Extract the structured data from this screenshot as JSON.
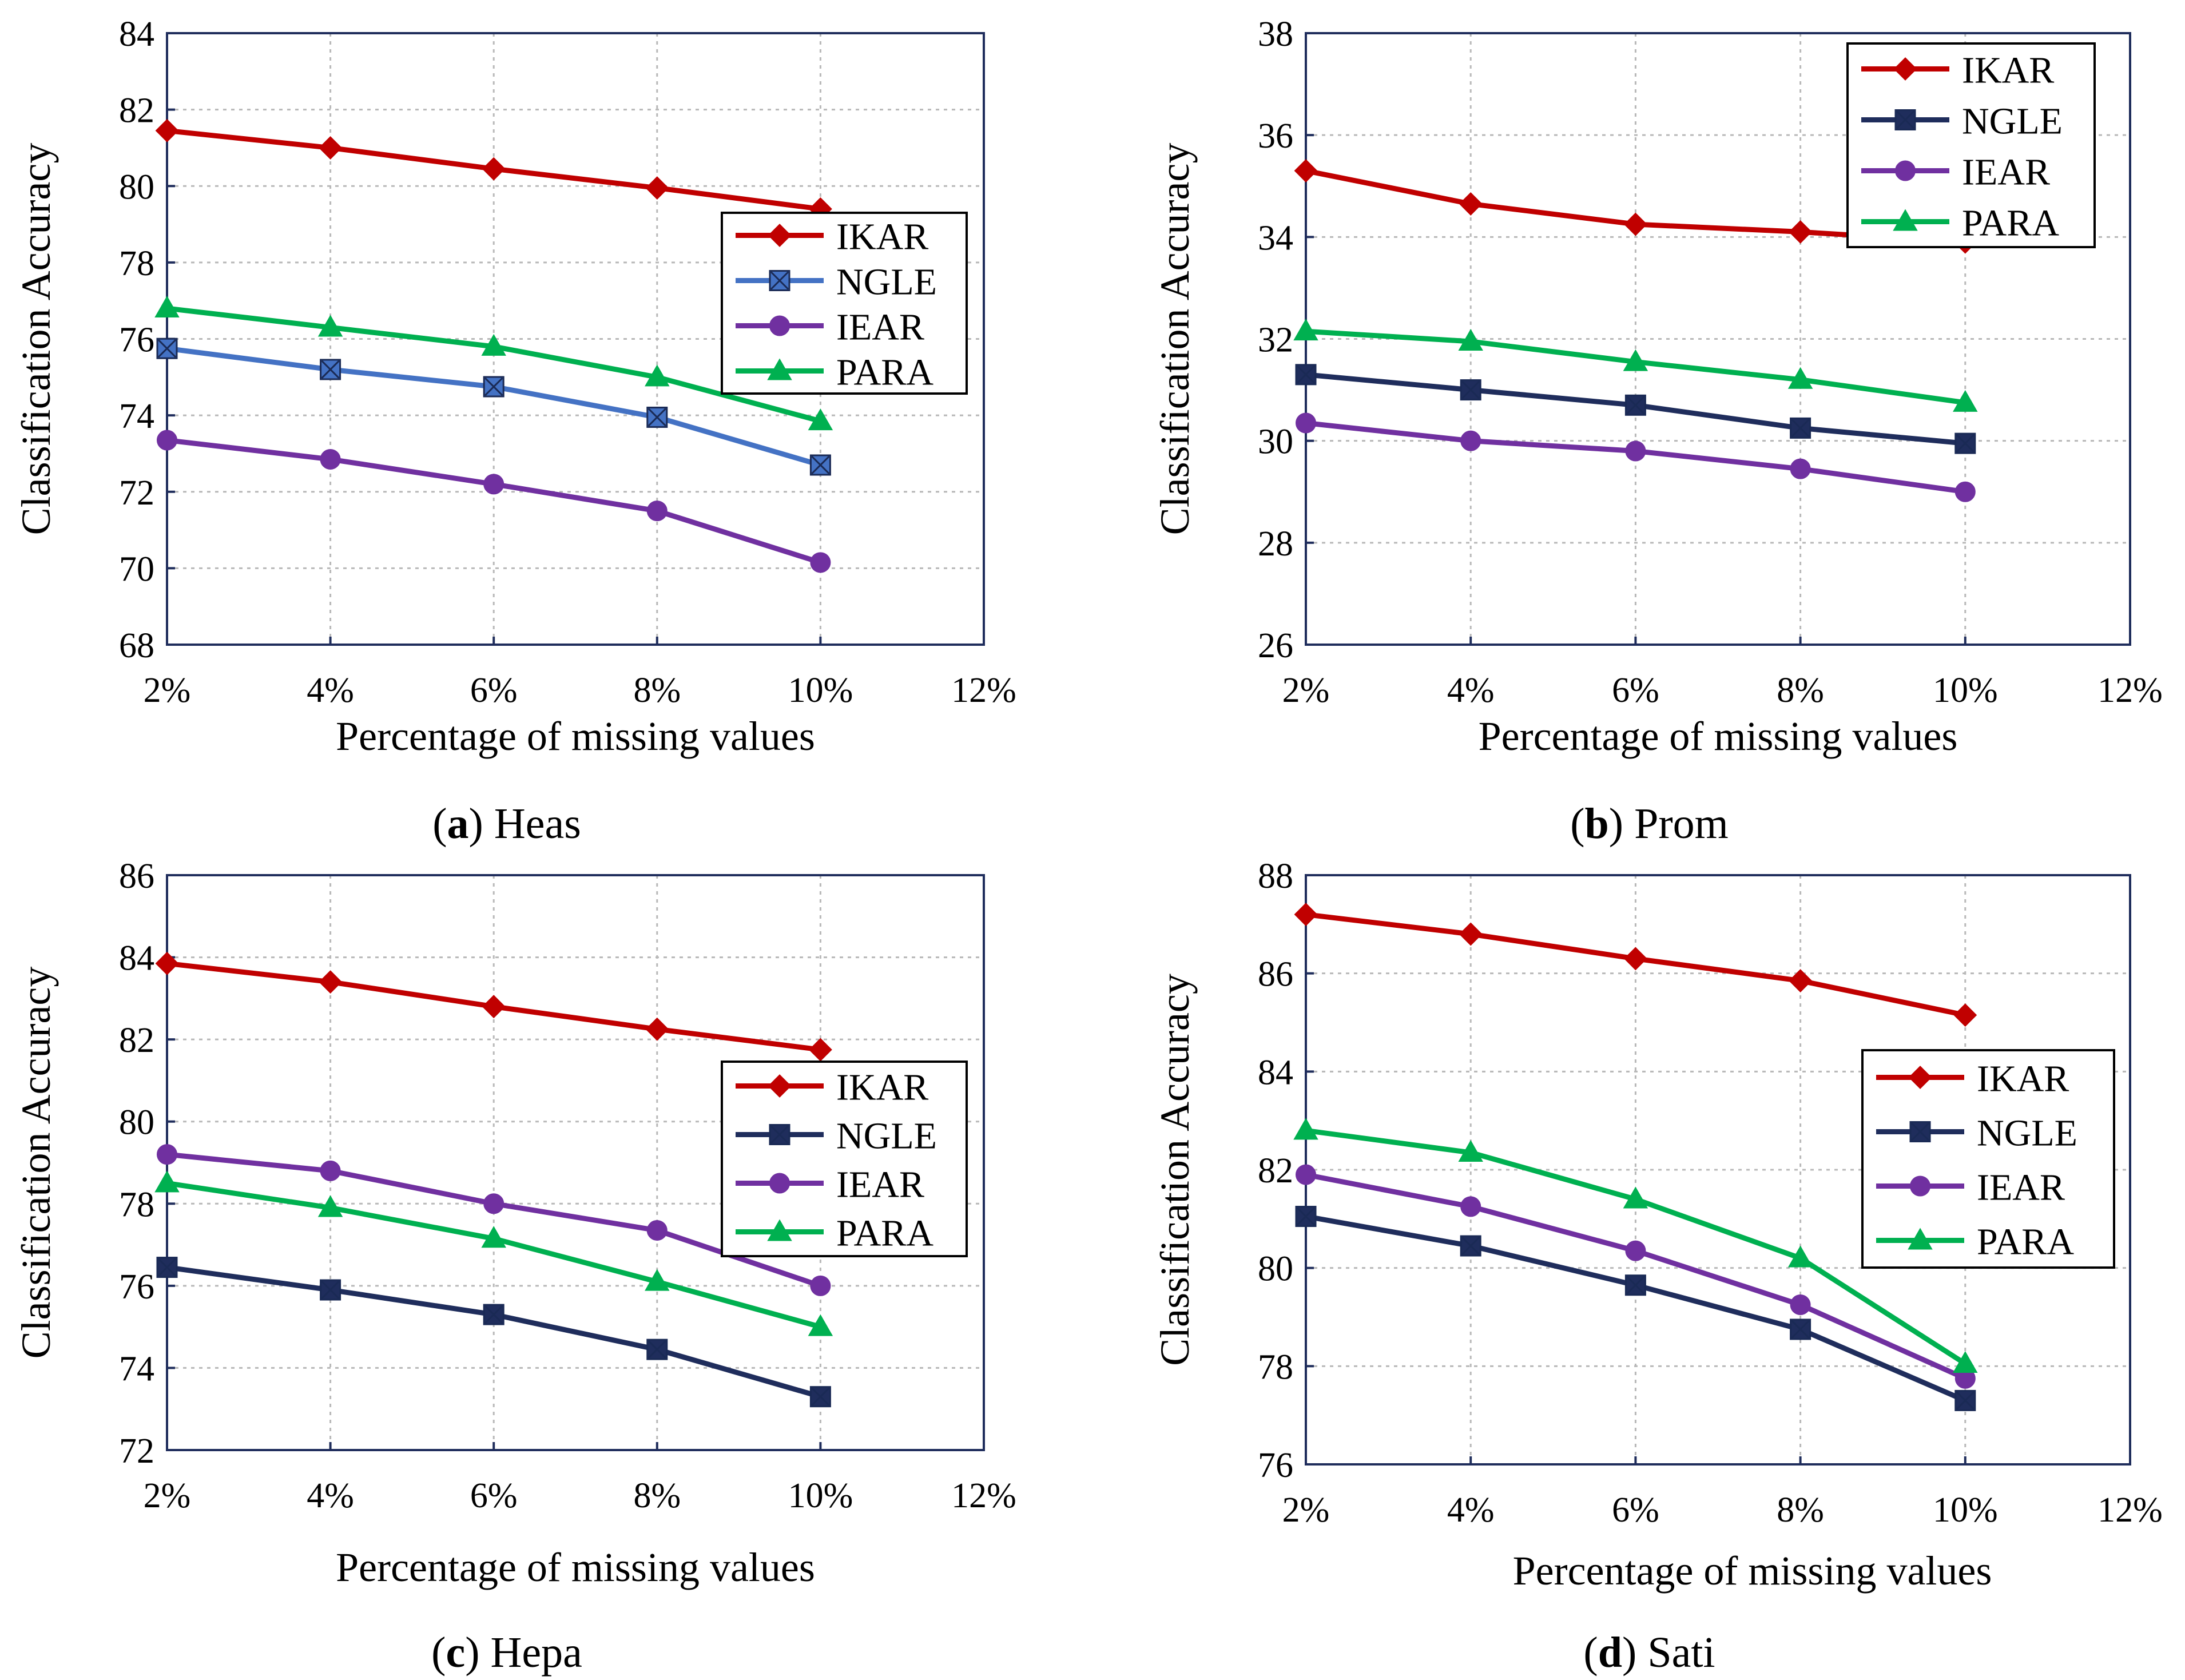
{
  "chart_data": [
    {
      "type": "line",
      "panel_letter": "a",
      "panel_name": " Heas",
      "xlabel": "Percentage  of missing values",
      "ylabel": "Classification Accuracy",
      "x_ticks": [
        "2%",
        "4%",
        "6%",
        "8%",
        "10%",
        "12%"
      ],
      "x": [
        2,
        4,
        6,
        8,
        10
      ],
      "xlim": [
        2,
        12
      ],
      "ylim": [
        68,
        84
      ],
      "y_ticks": [
        68,
        70,
        72,
        74,
        76,
        78,
        80,
        82,
        84
      ],
      "grid": true,
      "legend_position": "middle-right",
      "series": [
        {
          "name": "IKAR",
          "color": "#c00000",
          "marker": "diamond",
          "values": [
            81.45,
            81.0,
            80.45,
            79.95,
            79.4
          ]
        },
        {
          "name": "NGLE",
          "color": "#4472c4",
          "marker": "square-x",
          "values": [
            75.75,
            75.2,
            74.75,
            73.95,
            72.7
          ]
        },
        {
          "name": "IEAR",
          "color": "#7030a0",
          "marker": "circle",
          "values": [
            73.35,
            72.85,
            72.2,
            71.5,
            70.15
          ]
        },
        {
          "name": "PARA",
          "color": "#00b050",
          "marker": "triangle",
          "values": [
            76.8,
            76.3,
            75.8,
            75.0,
            73.85
          ]
        }
      ]
    },
    {
      "type": "line",
      "panel_letter": "b",
      "panel_name": " Prom",
      "xlabel": "Percentage  of missing values",
      "ylabel": "Classification Accuracy",
      "x_ticks": [
        "2%",
        "4%",
        "6%",
        "8%",
        "10%",
        "12%"
      ],
      "x": [
        2,
        4,
        6,
        8,
        10
      ],
      "xlim": [
        2,
        12
      ],
      "ylim": [
        26,
        38
      ],
      "y_ticks": [
        26,
        28,
        30,
        32,
        34,
        36,
        38
      ],
      "grid": true,
      "legend_position": "top-right",
      "series": [
        {
          "name": "IKAR",
          "color": "#c00000",
          "marker": "diamond",
          "values": [
            35.3,
            34.65,
            34.25,
            34.1,
            33.9
          ]
        },
        {
          "name": "NGLE",
          "color": "#1f2d5c",
          "marker": "square-x",
          "values": [
            31.3,
            31.0,
            30.7,
            30.25,
            29.95
          ]
        },
        {
          "name": "IEAR",
          "color": "#7030a0",
          "marker": "circle",
          "values": [
            30.35,
            30.0,
            29.8,
            29.45,
            29.0
          ]
        },
        {
          "name": "PARA",
          "color": "#00b050",
          "marker": "triangle",
          "values": [
            32.15,
            31.95,
            31.55,
            31.2,
            30.75
          ]
        }
      ]
    },
    {
      "type": "line",
      "panel_letter": "c",
      "panel_name": " Hepa",
      "xlabel": "Percentage  of missing values",
      "ylabel": "Classification Accuracy",
      "x_ticks": [
        "2%",
        "4%",
        "6%",
        "8%",
        "10%",
        "12%"
      ],
      "x": [
        2,
        4,
        6,
        8,
        10
      ],
      "xlim": [
        2,
        12
      ],
      "ylim": [
        72,
        86
      ],
      "y_ticks": [
        72,
        74,
        76,
        78,
        80,
        82,
        84,
        86
      ],
      "grid": true,
      "legend_position": "middle-right",
      "series": [
        {
          "name": "IKAR",
          "color": "#c00000",
          "marker": "diamond",
          "values": [
            83.85,
            83.4,
            82.8,
            82.25,
            81.75
          ]
        },
        {
          "name": "NGLE",
          "color": "#1f2d5c",
          "marker": "square-x",
          "values": [
            76.45,
            75.9,
            75.3,
            74.45,
            73.3
          ]
        },
        {
          "name": "IEAR",
          "color": "#7030a0",
          "marker": "circle",
          "values": [
            79.2,
            78.8,
            78.0,
            77.35,
            76.0
          ]
        },
        {
          "name": "PARA",
          "color": "#00b050",
          "marker": "triangle",
          "values": [
            78.5,
            77.9,
            77.15,
            76.1,
            75.0
          ]
        }
      ]
    },
    {
      "type": "line",
      "panel_letter": "d",
      "panel_name": " Sati",
      "xlabel": "Percentage  of missing values",
      "ylabel": "Classification Accuracy",
      "x_ticks": [
        "2%",
        "4%",
        "6%",
        "8%",
        "10%",
        "12%"
      ],
      "x": [
        2,
        4,
        6,
        8,
        10
      ],
      "xlim": [
        2,
        12
      ],
      "ylim": [
        76,
        88
      ],
      "y_ticks": [
        76,
        78,
        80,
        82,
        84,
        86,
        88
      ],
      "grid": true,
      "legend_position": "middle-right",
      "series": [
        {
          "name": "IKAR",
          "color": "#c00000",
          "marker": "diamond",
          "values": [
            87.2,
            86.8,
            86.3,
            85.85,
            85.15
          ]
        },
        {
          "name": "NGLE",
          "color": "#1f2d5c",
          "marker": "square-x",
          "values": [
            81.05,
            80.45,
            79.65,
            78.75,
            77.3
          ]
        },
        {
          "name": "IEAR",
          "color": "#7030a0",
          "marker": "circle",
          "values": [
            81.9,
            81.25,
            80.35,
            79.25,
            77.75
          ]
        },
        {
          "name": "PARA",
          "color": "#00b050",
          "marker": "triangle",
          "values": [
            82.8,
            82.35,
            81.4,
            80.2,
            78.05
          ]
        }
      ]
    }
  ]
}
